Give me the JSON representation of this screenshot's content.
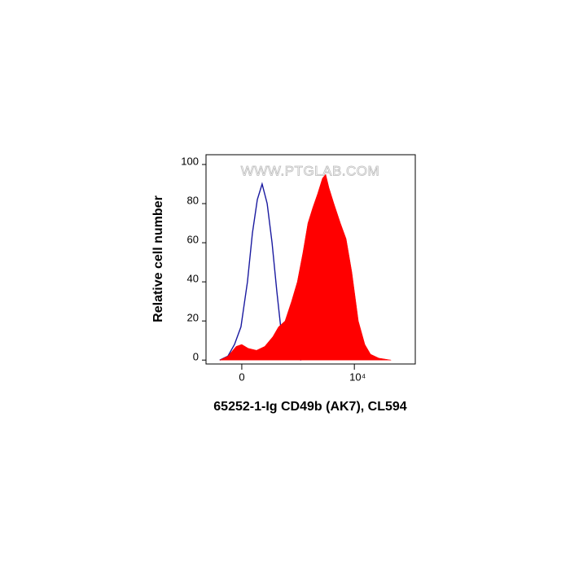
{
  "chart_data": {
    "type": "histogram",
    "xlabel": "65252-1-Ig CD49b (AK7), CL594",
    "ylabel": "Relative cell number",
    "annotation": "WWW.PTGLAB.COM",
    "xscale": "asinh",
    "xlim": [
      -260,
      176000
    ],
    "xticks": [
      0,
      {
        "value": 10000,
        "label": "10⁴"
      }
    ],
    "ylim": [
      -2,
      105
    ],
    "yticks": [
      0,
      20,
      40,
      60,
      80,
      100
    ],
    "series": [
      {
        "color": "#ff0000",
        "fill": true,
        "x": [
          -124,
          -70,
          -27,
          0,
          31,
          75,
          130,
          204,
          272,
          376,
          515,
          677,
          887,
          1120,
          1410,
          1770,
          2230,
          2600,
          3040,
          3820,
          5200,
          6800,
          8900,
          12100,
          16400,
          21500,
          31600,
          56200
        ],
        "values": [
          0,
          2,
          7,
          8,
          6,
          5,
          7,
          12,
          17,
          20,
          30,
          40,
          55,
          70,
          78,
          85,
          93,
          95,
          88,
          80,
          70,
          62,
          45,
          20,
          8,
          3,
          1,
          0
        ]
      },
      {
        "color": "#1a1aa0",
        "fill": false,
        "x": [
          -124,
          -70,
          -35,
          -4,
          27,
          52,
          80,
          111,
          150,
          196,
          251,
          320,
          407,
          557,
          821
        ],
        "values": [
          0,
          2,
          8,
          17,
          40,
          65,
          82,
          90,
          80,
          60,
          35,
          12,
          3,
          1,
          0
        ]
      }
    ]
  }
}
